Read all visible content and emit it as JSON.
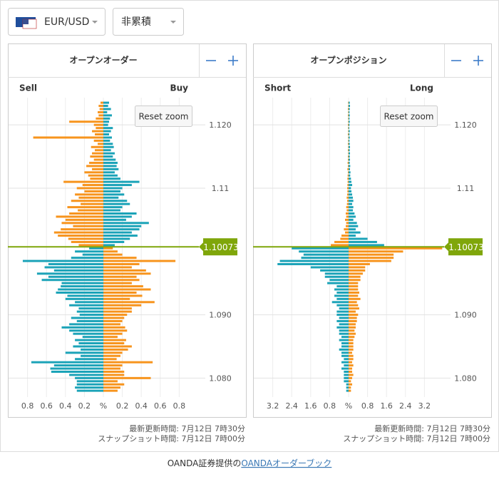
{
  "controls": {
    "pair": "EUR/USD",
    "mode": "非累積"
  },
  "footer": {
    "text": "OANDA証券提供の",
    "link": "OANDAオーダーブック"
  },
  "chart_data": [
    {
      "type": "butterfly",
      "title": "オープンオーダー",
      "reset_label": "Reset zoom",
      "updated": "最新更新時間: 7月12日 7時30分",
      "snapshot": "スナップショット時間: 7月12日 7時00分",
      "current_price": 1.10073,
      "price_color": "#7fa60a",
      "levels": [
        1.1235,
        1.123,
        1.1225,
        1.122,
        1.1215,
        1.121,
        1.1205,
        1.12,
        1.1195,
        1.119,
        1.1185,
        1.118,
        1.1175,
        1.117,
        1.1165,
        1.116,
        1.1155,
        1.115,
        1.1145,
        1.114,
        1.1135,
        1.113,
        1.1125,
        1.112,
        1.1115,
        1.111,
        1.1105,
        1.11,
        1.1095,
        1.109,
        1.1085,
        1.108,
        1.1075,
        1.107,
        1.1065,
        1.106,
        1.1055,
        1.105,
        1.1045,
        1.104,
        1.1035,
        1.103,
        1.1025,
        1.102,
        1.1015,
        1.101,
        1.1005,
        1.1,
        1.0995,
        1.099,
        1.0985,
        1.098,
        1.0975,
        1.097,
        1.0965,
        1.096,
        1.0955,
        1.095,
        1.0945,
        1.094,
        1.0935,
        1.093,
        1.0925,
        1.092,
        1.0915,
        1.091,
        1.0905,
        1.09,
        1.0895,
        1.089,
        1.0885,
        1.088,
        1.0875,
        1.087,
        1.0865,
        1.086,
        1.0855,
        1.085,
        1.0845,
        1.084,
        1.0835,
        1.083,
        1.0825,
        1.082,
        1.0815,
        1.081,
        1.0805,
        1.08,
        1.0795,
        1.079,
        1.0785,
        1.078
      ],
      "series": [
        {
          "name": "Sell",
          "side": "left",
          "color_above": "#f7941d",
          "color_below": "#1ba3b8",
          "values": [
            0.03,
            0.05,
            0.04,
            0.06,
            0.05,
            0.08,
            0.36,
            0.1,
            0.08,
            0.12,
            0.09,
            0.74,
            0.1,
            0.06,
            0.13,
            0.09,
            0.12,
            0.14,
            0.1,
            0.15,
            0.18,
            0.12,
            0.2,
            0.16,
            0.14,
            0.42,
            0.22,
            0.28,
            0.2,
            0.3,
            0.26,
            0.34,
            0.24,
            0.38,
            0.27,
            0.36,
            0.5,
            0.4,
            0.44,
            0.32,
            0.45,
            0.52,
            0.48,
            0.37,
            0.34,
            0.26,
            0.15,
            0.3,
            0.22,
            0.34,
            0.85,
            0.58,
            0.62,
            0.52,
            0.7,
            0.58,
            0.65,
            0.44,
            0.45,
            0.48,
            0.5,
            0.38,
            0.4,
            0.3,
            0.36,
            0.26,
            0.28,
            0.25,
            0.34,
            0.28,
            0.36,
            0.44,
            0.36,
            0.32,
            0.22,
            0.3,
            0.26,
            0.32,
            0.24,
            0.4,
            0.24,
            0.3,
            0.76,
            0.52,
            0.56,
            0.55,
            0.36,
            0.3,
            0.28,
            0.28,
            0.3,
            0.28
          ]
        },
        {
          "name": "Buy",
          "side": "right",
          "color_above": "#1ba3b8",
          "color_below": "#f7941d",
          "values": [
            0.06,
            0.05,
            0.08,
            0.04,
            0.09,
            0.07,
            0.06,
            0.05,
            0.1,
            0.08,
            0.06,
            0.09,
            0.07,
            0.1,
            0.11,
            0.08,
            0.12,
            0.1,
            0.13,
            0.15,
            0.14,
            0.16,
            0.12,
            0.15,
            0.18,
            0.38,
            0.3,
            0.2,
            0.18,
            0.22,
            0.16,
            0.25,
            0.28,
            0.2,
            0.18,
            0.35,
            0.3,
            0.24,
            0.48,
            0.4,
            0.38,
            0.3,
            0.36,
            0.28,
            0.22,
            0.12,
            0.1,
            0.15,
            0.2,
            0.35,
            0.76,
            0.38,
            0.3,
            0.45,
            0.5,
            0.35,
            0.38,
            0.3,
            0.42,
            0.5,
            0.35,
            0.41,
            0.28,
            0.54,
            0.4,
            0.3,
            0.3,
            0.25,
            0.22,
            0.2,
            0.18,
            0.23,
            0.25,
            0.2,
            0.15,
            0.24,
            0.22,
            0.3,
            0.26,
            0.2,
            0.18,
            0.14,
            0.52,
            0.2,
            0.18,
            0.22,
            0.22,
            0.5,
            0.15,
            0.22,
            0.18,
            0.15
          ]
        }
      ],
      "xlim": [
        -1,
        1
      ],
      "xticks": [
        {
          "value": -0.8,
          "label": "0.8"
        },
        {
          "value": -0.6,
          "label": "0.6"
        },
        {
          "value": -0.4,
          "label": "0.4"
        },
        {
          "value": -0.2,
          "label": "0.2"
        },
        {
          "value": 0,
          "label": "%"
        },
        0.2,
        0.4,
        0.6,
        0.8
      ],
      "ylim": [
        1.077,
        1.1243
      ],
      "yticks": [
        {
          "value": 1.08,
          "label": "1.080"
        },
        {
          "value": 1.09,
          "label": "1.090"
        },
        1.11,
        {
          "value": 1.12,
          "label": "1.120"
        }
      ],
      "grid": true
    },
    {
      "type": "butterfly",
      "title": "オープンポジション",
      "reset_label": "Reset zoom",
      "updated": "最新更新時間: 7月12日 7時30分",
      "snapshot": "スナップショット時間: 7月12日 7時00分",
      "current_price": 1.10073,
      "price_color": "#7fa60a",
      "levels": [
        1.1235,
        1.123,
        1.1225,
        1.122,
        1.1215,
        1.121,
        1.1205,
        1.12,
        1.1195,
        1.119,
        1.1185,
        1.118,
        1.1175,
        1.117,
        1.1165,
        1.116,
        1.1155,
        1.115,
        1.1145,
        1.114,
        1.1135,
        1.113,
        1.1125,
        1.112,
        1.1115,
        1.111,
        1.1105,
        1.11,
        1.1095,
        1.109,
        1.1085,
        1.108,
        1.1075,
        1.107,
        1.1065,
        1.106,
        1.1055,
        1.105,
        1.1045,
        1.104,
        1.1035,
        1.103,
        1.1025,
        1.102,
        1.1015,
        1.101,
        1.1005,
        1.1,
        1.0995,
        1.099,
        1.0985,
        1.098,
        1.0975,
        1.097,
        1.0965,
        1.096,
        1.0955,
        1.095,
        1.0945,
        1.094,
        1.0935,
        1.093,
        1.0925,
        1.092,
        1.0915,
        1.091,
        1.0905,
        1.09,
        1.0895,
        1.089,
        1.0885,
        1.088,
        1.0875,
        1.087,
        1.0865,
        1.086,
        1.0855,
        1.085,
        1.0845,
        1.084,
        1.0835,
        1.083,
        1.0825,
        1.082,
        1.0815,
        1.081,
        1.0805,
        1.08,
        1.0795,
        1.079,
        1.0785,
        1.078
      ],
      "series": [
        {
          "name": "Short",
          "side": "left",
          "color_above": "#f7941d",
          "color_below": "#1ba3b8",
          "values": [
            0.02,
            0.02,
            0.03,
            0.02,
            0.03,
            0.02,
            0.02,
            0.03,
            0.02,
            0.02,
            0.03,
            0.02,
            0.02,
            0.03,
            0.02,
            0.03,
            0.02,
            0.03,
            0.03,
            0.04,
            0.03,
            0.05,
            0.03,
            0.04,
            0.05,
            0.04,
            0.05,
            0.06,
            0.05,
            0.06,
            0.08,
            0.06,
            0.07,
            0.1,
            0.08,
            0.12,
            0.1,
            0.15,
            0.1,
            0.12,
            0.2,
            0.15,
            0.3,
            0.35,
            0.6,
            0.75,
            2.4,
            2.1,
            1.9,
            2.0,
            2.9,
            3.0,
            1.6,
            1.2,
            1.0,
            1.0,
            0.8,
            0.9,
            0.5,
            0.6,
            0.5,
            0.6,
            0.5,
            0.7,
            0.5,
            0.4,
            0.5,
            0.5,
            0.4,
            0.5,
            0.4,
            0.5,
            0.4,
            0.4,
            0.3,
            0.4,
            0.3,
            0.3,
            0.4,
            0.3,
            0.3,
            0.2,
            0.3,
            0.2,
            0.3,
            0.2,
            0.2,
            0.2,
            0.2,
            0.1,
            0.1,
            0.1
          ]
        },
        {
          "name": "Long",
          "side": "right",
          "color_above": "#1ba3b8",
          "color_below": "#f7941d",
          "values": [
            0.05,
            0.06,
            0.05,
            0.04,
            0.05,
            0.04,
            0.05,
            0.04,
            0.03,
            0.05,
            0.04,
            0.05,
            0.04,
            0.05,
            0.06,
            0.05,
            0.06,
            0.05,
            0.06,
            0.05,
            0.07,
            0.06,
            0.08,
            0.07,
            0.1,
            0.12,
            0.15,
            0.1,
            0.12,
            0.15,
            0.18,
            0.2,
            0.15,
            0.2,
            0.18,
            0.25,
            0.3,
            0.2,
            0.35,
            0.4,
            0.3,
            0.5,
            0.3,
            0.8,
            1.2,
            1.5,
            3.95,
            2.3,
            1.9,
            1.9,
            1.8,
            0.9,
            0.7,
            0.7,
            0.6,
            0.5,
            0.5,
            0.4,
            0.4,
            0.4,
            0.45,
            0.4,
            0.5,
            0.35,
            0.4,
            0.45,
            0.3,
            0.4,
            0.35,
            0.35,
            0.3,
            0.3,
            0.25,
            0.3,
            0.25,
            0.2,
            0.2,
            0.2,
            0.2,
            0.15,
            0.2,
            0.2,
            0.15,
            0.2,
            0.15,
            0.15,
            0.2,
            0.15,
            0.1,
            0.15,
            0.1,
            0.1
          ]
        }
      ],
      "xlim": [
        -4,
        4
      ],
      "xticks": [
        {
          "value": -3.2,
          "label": "3.2"
        },
        {
          "value": -2.4,
          "label": "2.4"
        },
        {
          "value": -1.6,
          "label": "1.6"
        },
        {
          "value": -0.8,
          "label": "0.8"
        },
        {
          "value": 0,
          "label": "%"
        },
        0.8,
        1.6,
        2.4,
        3.2
      ],
      "ylim": [
        1.077,
        1.1243
      ],
      "yticks": [
        {
          "value": 1.08,
          "label": "1.080"
        },
        {
          "value": 1.09,
          "label": "1.090"
        },
        1.11,
        {
          "value": 1.12,
          "label": "1.120"
        }
      ],
      "grid": true
    }
  ]
}
